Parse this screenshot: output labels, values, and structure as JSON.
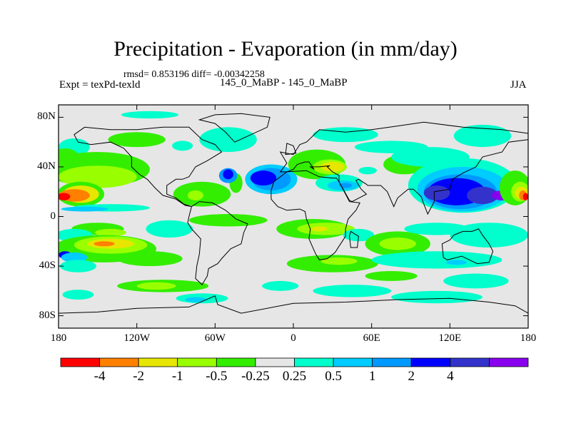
{
  "title": "Precipitation - Evaporation (in mm/day)",
  "stats": "rmsd= 0.853196 diff= -0.00342258",
  "experiment": "Expt = texPd-texld",
  "runs": "145_0_MaBP - 145_0_MaBP",
  "season": "JJA",
  "map": {
    "lon_range": [
      -180,
      180
    ],
    "lat_range": [
      -90,
      90
    ],
    "projection": "cylindrical-equidistant",
    "background_color": "#e6e6e6",
    "coastline_color": "#000000",
    "x_ticks": [
      {
        "value": -180,
        "label": "180"
      },
      {
        "value": -120,
        "label": "120W"
      },
      {
        "value": -60,
        "label": "60W"
      },
      {
        "value": 0,
        "label": "0"
      },
      {
        "value": 60,
        "label": "60E"
      },
      {
        "value": 120,
        "label": "120E"
      },
      {
        "value": 180,
        "label": "180"
      }
    ],
    "y_ticks": [
      {
        "value": 80,
        "label": "80N"
      },
      {
        "value": 40,
        "label": "40N"
      },
      {
        "value": 0,
        "label": "0"
      },
      {
        "value": -40,
        "label": "40S"
      },
      {
        "value": -80,
        "label": "80S"
      }
    ]
  },
  "colorbar": {
    "colors": [
      "#ff0000",
      "#ff8000",
      "#e6e600",
      "#99ff00",
      "#33ee00",
      "#e6e6e6",
      "#00ffcc",
      "#00ccff",
      "#0099ff",
      "#0000ff",
      "#3333cc",
      "#8800ee"
    ],
    "labels": [
      "-4",
      "-2",
      "-1",
      "-0.5",
      "-0.25",
      "0.25",
      "0.5",
      "1",
      "2",
      "4"
    ]
  },
  "regions": [
    {
      "level": "#00ffcc",
      "lon": -168,
      "lat": 56,
      "rx": 12,
      "ry": 7
    },
    {
      "level": "#00ffcc",
      "lon": -110,
      "lat": 82,
      "rx": 22,
      "ry": 3
    },
    {
      "level": "#00ffcc",
      "lon": -50,
      "lat": 62,
      "rx": 22,
      "ry": 10
    },
    {
      "level": "#00ffcc",
      "lon": 40,
      "lat": 66,
      "rx": 25,
      "ry": 6
    },
    {
      "level": "#00ffcc",
      "lon": 145,
      "lat": 65,
      "rx": 22,
      "ry": 9
    },
    {
      "level": "#33ee00",
      "lon": -175,
      "lat": 45,
      "rx": 12,
      "ry": 10
    },
    {
      "level": "#33ee00",
      "lon": -150,
      "lat": 38,
      "rx": 40,
      "ry": 14
    },
    {
      "level": "#99ff00",
      "lon": -150,
      "lat": 32,
      "rx": 30,
      "ry": 9
    },
    {
      "level": "#33ee00",
      "lon": -120,
      "lat": 62,
      "rx": 22,
      "ry": 6
    },
    {
      "level": "#00ffcc",
      "lon": -85,
      "lat": 57,
      "rx": 8,
      "ry": 4
    },
    {
      "level": "#33ee00",
      "lon": -163,
      "lat": 18,
      "rx": 18,
      "ry": 10
    },
    {
      "level": "#e6e600",
      "lon": -163,
      "lat": 18,
      "rx": 14,
      "ry": 7
    },
    {
      "level": "#ff8000",
      "lon": -168,
      "lat": 17,
      "rx": 12,
      "ry": 5
    },
    {
      "level": "#ff0000",
      "lon": -176,
      "lat": 16,
      "rx": 5,
      "ry": 3
    },
    {
      "level": "#00ffcc",
      "lon": -140,
      "lat": 7,
      "rx": 30,
      "ry": 3
    },
    {
      "level": "#00ccff",
      "lon": -160,
      "lat": 6,
      "rx": 18,
      "ry": 2
    },
    {
      "level": "#33ee00",
      "lon": -70,
      "lat": 18,
      "rx": 22,
      "ry": 10
    },
    {
      "level": "#99ff00",
      "lon": -75,
      "lat": 17,
      "rx": 6,
      "ry": 4
    },
    {
      "level": "#33ee00",
      "lon": -44,
      "lat": 27,
      "rx": 5,
      "ry": 8
    },
    {
      "level": "#0099ff",
      "lon": -50,
      "lat": 33,
      "rx": 7,
      "ry": 6
    },
    {
      "level": "#0000ff",
      "lon": -50,
      "lat": 34,
      "rx": 4,
      "ry": 4
    },
    {
      "level": "#00ccff",
      "lon": -17,
      "lat": 30,
      "rx": 20,
      "ry": 12
    },
    {
      "level": "#0099ff",
      "lon": -17,
      "lat": 30,
      "rx": 15,
      "ry": 9
    },
    {
      "level": "#0000ff",
      "lon": -23,
      "lat": 31,
      "rx": 10,
      "ry": 6
    },
    {
      "level": "#33ee00",
      "lon": 18,
      "lat": 42,
      "rx": 22,
      "ry": 12
    },
    {
      "level": "#99ff00",
      "lon": 28,
      "lat": 40,
      "rx": 13,
      "ry": 6
    },
    {
      "level": "#e6e600",
      "lon": 30,
      "lat": 40,
      "rx": 9,
      "ry": 4
    },
    {
      "level": "#00ffcc",
      "lon": 57,
      "lat": 37,
      "rx": 7,
      "ry": 3
    },
    {
      "level": "#33ee00",
      "lon": 85,
      "lat": 42,
      "rx": 16,
      "ry": 8
    },
    {
      "level": "#00ffcc",
      "lon": 75,
      "lat": 56,
      "rx": 28,
      "ry": 5
    },
    {
      "level": "#00ffcc",
      "lon": 105,
      "lat": 48,
      "rx": 30,
      "ry": 8
    },
    {
      "level": "#00ffcc",
      "lon": 130,
      "lat": 25,
      "rx": 42,
      "ry": 22
    },
    {
      "level": "#00ccff",
      "lon": 130,
      "lat": 22,
      "rx": 35,
      "ry": 18
    },
    {
      "level": "#0099ff",
      "lon": 128,
      "lat": 20,
      "rx": 28,
      "ry": 14
    },
    {
      "level": "#0000ff",
      "lon": 125,
      "lat": 20,
      "rx": 22,
      "ry": 11
    },
    {
      "level": "#3333cc",
      "lon": 110,
      "lat": 19,
      "rx": 10,
      "ry": 6
    },
    {
      "level": "#3333cc",
      "lon": 145,
      "lat": 17,
      "rx": 12,
      "ry": 7
    },
    {
      "level": "#8800ee",
      "lon": 160,
      "lat": 17,
      "rx": 8,
      "ry": 4
    },
    {
      "level": "#00ffcc",
      "lon": 35,
      "lat": 27,
      "rx": 18,
      "ry": 7
    },
    {
      "level": "#00ccff",
      "lon": 38,
      "lat": 25,
      "rx": 12,
      "ry": 4
    },
    {
      "level": "#0099ff",
      "lon": 40,
      "lat": 25,
      "rx": 5,
      "ry": 2
    },
    {
      "level": "#33ee00",
      "lon": 170,
      "lat": 23,
      "rx": 12,
      "ry": 14
    },
    {
      "level": "#99ff00",
      "lon": 174,
      "lat": 20,
      "rx": 7,
      "ry": 8
    },
    {
      "level": "#e6e600",
      "lon": 175,
      "lat": 19,
      "rx": 5,
      "ry": 5
    },
    {
      "level": "#ff8000",
      "lon": 176,
      "lat": 17,
      "rx": 3,
      "ry": 4
    },
    {
      "level": "#ff0000",
      "lon": 178,
      "lat": 16,
      "rx": 2,
      "ry": 3
    },
    {
      "level": "#33ee00",
      "lon": -150,
      "lat": -10,
      "rx": 20,
      "ry": 5
    },
    {
      "level": "#99ff00",
      "lon": -140,
      "lat": -13,
      "rx": 12,
      "ry": 3
    },
    {
      "level": "#00ccff",
      "lon": -170,
      "lat": -17,
      "rx": 10,
      "ry": 3
    },
    {
      "level": "#00ffcc",
      "lon": -168,
      "lat": -15,
      "rx": 14,
      "ry": 5
    },
    {
      "level": "#33ee00",
      "lon": -145,
      "lat": -26,
      "rx": 40,
      "ry": 11
    },
    {
      "level": "#99ff00",
      "lon": -140,
      "lat": -23,
      "rx": 28,
      "ry": 7
    },
    {
      "level": "#e6e600",
      "lon": -140,
      "lat": -22,
      "rx": 18,
      "ry": 4
    },
    {
      "level": "#ff8000",
      "lon": -145,
      "lat": -22,
      "rx": 8,
      "ry": 2
    },
    {
      "level": "#0000ff",
      "lon": -175,
      "lat": -31,
      "rx": 5,
      "ry": 3
    },
    {
      "level": "#00ccff",
      "lon": -168,
      "lat": -33,
      "rx": 10,
      "ry": 4
    },
    {
      "level": "#00ffcc",
      "lon": -165,
      "lat": -40,
      "rx": 14,
      "ry": 5
    },
    {
      "level": "#33ee00",
      "lon": -110,
      "lat": -34,
      "rx": 25,
      "ry": 6
    },
    {
      "level": "#33ee00",
      "lon": -100,
      "lat": -56,
      "rx": 35,
      "ry": 5
    },
    {
      "level": "#99ff00",
      "lon": -105,
      "lat": -56,
      "rx": 15,
      "ry": 3
    },
    {
      "level": "#00ffcc",
      "lon": -70,
      "lat": -66,
      "rx": 20,
      "ry": 4
    },
    {
      "level": "#00ffcc",
      "lon": -165,
      "lat": -63,
      "rx": 12,
      "ry": 4
    },
    {
      "level": "#00ccff",
      "lon": -75,
      "lat": -67,
      "rx": 8,
      "ry": 2
    },
    {
      "level": "#00ffcc",
      "lon": -95,
      "lat": -10,
      "rx": 18,
      "ry": 7
    },
    {
      "level": "#33ee00",
      "lon": -50,
      "lat": -3,
      "rx": 30,
      "ry": 5
    },
    {
      "level": "#33ee00",
      "lon": 15,
      "lat": -10,
      "rx": 28,
      "ry": 8
    },
    {
      "level": "#99ff00",
      "lon": 25,
      "lat": -10,
      "rx": 22,
      "ry": 5
    },
    {
      "level": "#e6e600",
      "lon": 20,
      "lat": -10,
      "rx": 6,
      "ry": 2
    },
    {
      "level": "#00ffcc",
      "lon": 50,
      "lat": -15,
      "rx": 12,
      "ry": 5
    },
    {
      "level": "#33ee00",
      "lon": 30,
      "lat": -38,
      "rx": 35,
      "ry": 7
    },
    {
      "level": "#99ff00",
      "lon": 35,
      "lat": -36,
      "rx": 14,
      "ry": 3
    },
    {
      "level": "#33ee00",
      "lon": 80,
      "lat": -22,
      "rx": 25,
      "ry": 10
    },
    {
      "level": "#99ff00",
      "lon": 80,
      "lat": -22,
      "rx": 14,
      "ry": 5
    },
    {
      "level": "#00ffcc",
      "lon": 110,
      "lat": -10,
      "rx": 25,
      "ry": 5
    },
    {
      "level": "#00ffcc",
      "lon": 150,
      "lat": -15,
      "rx": 30,
      "ry": 10
    },
    {
      "level": "#00ffcc",
      "lon": 110,
      "lat": -35,
      "rx": 50,
      "ry": 7
    },
    {
      "level": "#00ccff",
      "lon": 125,
      "lat": -37,
      "rx": 8,
      "ry": 2
    },
    {
      "level": "#33ee00",
      "lon": 75,
      "lat": -48,
      "rx": 20,
      "ry": 4
    },
    {
      "level": "#00ffcc",
      "lon": 140,
      "lat": -52,
      "rx": 25,
      "ry": 6
    },
    {
      "level": "#00ffcc",
      "lon": -10,
      "lat": -56,
      "rx": 14,
      "ry": 4
    },
    {
      "level": "#00ffcc",
      "lon": 45,
      "lat": -60,
      "rx": 30,
      "ry": 5
    },
    {
      "level": "#00ffcc",
      "lon": 110,
      "lat": -65,
      "rx": 35,
      "ry": 5
    }
  ],
  "continents": [
    [
      [
        -168,
        66
      ],
      [
        -160,
        72
      ],
      [
        -140,
        70
      ],
      [
        -120,
        70
      ],
      [
        -100,
        72
      ],
      [
        -80,
        72
      ],
      [
        -70,
        62
      ],
      [
        -60,
        58
      ],
      [
        -55,
        52
      ],
      [
        -66,
        45
      ],
      [
        -75,
        40
      ],
      [
        -80,
        32
      ],
      [
        -85,
        30
      ],
      [
        -90,
        30
      ],
      [
        -97,
        25
      ],
      [
        -97,
        18
      ],
      [
        -90,
        15
      ],
      [
        -84,
        10
      ],
      [
        -78,
        8
      ],
      [
        -83,
        9
      ],
      [
        -90,
        14
      ],
      [
        -100,
        17
      ],
      [
        -106,
        23
      ],
      [
        -112,
        30
      ],
      [
        -118,
        34
      ],
      [
        -124,
        40
      ],
      [
        -124,
        48
      ],
      [
        -130,
        55
      ],
      [
        -140,
        60
      ],
      [
        -155,
        58
      ],
      [
        -165,
        60
      ],
      [
        -168,
        66
      ]
    ],
    [
      [
        -78,
        8
      ],
      [
        -72,
        12
      ],
      [
        -62,
        11
      ],
      [
        -52,
        5
      ],
      [
        -44,
        -2
      ],
      [
        -35,
        -6
      ],
      [
        -38,
        -13
      ],
      [
        -40,
        -22
      ],
      [
        -48,
        -26
      ],
      [
        -55,
        -34
      ],
      [
        -58,
        -38
      ],
      [
        -65,
        -42
      ],
      [
        -66,
        -48
      ],
      [
        -70,
        -55
      ],
      [
        -75,
        -50
      ],
      [
        -74,
        -40
      ],
      [
        -72,
        -30
      ],
      [
        -71,
        -18
      ],
      [
        -78,
        -10
      ],
      [
        -81,
        -5
      ],
      [
        -80,
        0
      ],
      [
        -78,
        8
      ]
    ],
    [
      [
        -10,
        36
      ],
      [
        -5,
        43
      ],
      [
        -10,
        52
      ],
      [
        0,
        50
      ],
      [
        5,
        58
      ],
      [
        10,
        60
      ],
      [
        20,
        70
      ],
      [
        40,
        68
      ],
      [
        60,
        70
      ],
      [
        80,
        73
      ],
      [
        100,
        76
      ],
      [
        130,
        72
      ],
      [
        160,
        70
      ],
      [
        180,
        67
      ],
      [
        180,
        62
      ],
      [
        165,
        60
      ],
      [
        160,
        52
      ],
      [
        145,
        48
      ],
      [
        140,
        40
      ],
      [
        130,
        35
      ],
      [
        122,
        30
      ],
      [
        120,
        22
      ],
      [
        108,
        20
      ],
      [
        108,
        12
      ],
      [
        103,
        2
      ],
      [
        100,
        10
      ],
      [
        98,
        16
      ],
      [
        92,
        22
      ],
      [
        88,
        22
      ],
      [
        80,
        15
      ],
      [
        77,
        8
      ],
      [
        72,
        20
      ],
      [
        67,
        25
      ],
      [
        57,
        25
      ],
      [
        56,
        26
      ],
      [
        50,
        30
      ],
      [
        48,
        29
      ],
      [
        52,
        22
      ],
      [
        56,
        18
      ],
      [
        45,
        12
      ],
      [
        43,
        13
      ],
      [
        35,
        28
      ],
      [
        35,
        33
      ],
      [
        30,
        36
      ],
      [
        26,
        40
      ],
      [
        28,
        41
      ],
      [
        20,
        40
      ],
      [
        13,
        40
      ],
      [
        16,
        38
      ],
      [
        12,
        44
      ],
      [
        9,
        44
      ],
      [
        3,
        42
      ],
      [
        0,
        38
      ],
      [
        -5,
        36
      ],
      [
        -10,
        36
      ]
    ],
    [
      [
        -17,
        21
      ],
      [
        -15,
        28
      ],
      [
        -10,
        32
      ],
      [
        -5,
        36
      ],
      [
        10,
        37
      ],
      [
        20,
        32
      ],
      [
        30,
        31
      ],
      [
        33,
        31
      ],
      [
        35,
        28
      ],
      [
        43,
        12
      ],
      [
        51,
        11
      ],
      [
        48,
        5
      ],
      [
        42,
        -2
      ],
      [
        40,
        -10
      ],
      [
        40,
        -16
      ],
      [
        35,
        -24
      ],
      [
        32,
        -29
      ],
      [
        26,
        -34
      ],
      [
        20,
        -35
      ],
      [
        17,
        -30
      ],
      [
        12,
        -18
      ],
      [
        13,
        -10
      ],
      [
        10,
        -2
      ],
      [
        9,
        4
      ],
      [
        5,
        6
      ],
      [
        -5,
        5
      ],
      [
        -12,
        8
      ],
      [
        -17,
        14
      ],
      [
        -17,
        21
      ]
    ],
    [
      [
        114,
        -22
      ],
      [
        120,
        -19
      ],
      [
        123,
        -15
      ],
      [
        130,
        -12
      ],
      [
        137,
        -12
      ],
      [
        142,
        -10
      ],
      [
        145,
        -15
      ],
      [
        150,
        -22
      ],
      [
        153,
        -28
      ],
      [
        150,
        -37
      ],
      [
        141,
        -38
      ],
      [
        135,
        -35
      ],
      [
        129,
        -32
      ],
      [
        118,
        -35
      ],
      [
        115,
        -33
      ],
      [
        114,
        -22
      ]
    ],
    [
      [
        -180,
        -78
      ],
      [
        -150,
        -77
      ],
      [
        -120,
        -74
      ],
      [
        -80,
        -73
      ],
      [
        -60,
        -64
      ],
      [
        -58,
        -71
      ],
      [
        -40,
        -78
      ],
      [
        0,
        -70
      ],
      [
        40,
        -69
      ],
      [
        80,
        -67
      ],
      [
        120,
        -66
      ],
      [
        150,
        -69
      ],
      [
        170,
        -72
      ],
      [
        180,
        -78
      ],
      [
        180,
        -90
      ],
      [
        -180,
        -90
      ],
      [
        -180,
        -78
      ]
    ],
    [
      [
        -45,
        60
      ],
      [
        -20,
        72
      ],
      [
        -18,
        80
      ],
      [
        -40,
        83
      ],
      [
        -60,
        82
      ],
      [
        -72,
        78
      ],
      [
        -60,
        75
      ],
      [
        -52,
        68
      ],
      [
        -45,
        60
      ]
    ],
    [
      [
        44,
        -12
      ],
      [
        50,
        -16
      ],
      [
        49,
        -25
      ],
      [
        44,
        -25
      ],
      [
        43,
        -16
      ],
      [
        44,
        -12
      ]
    ],
    [
      [
        -6,
        50
      ],
      [
        2,
        51
      ],
      [
        0,
        57
      ],
      [
        -5,
        59
      ],
      [
        -6,
        50
      ]
    ]
  ]
}
